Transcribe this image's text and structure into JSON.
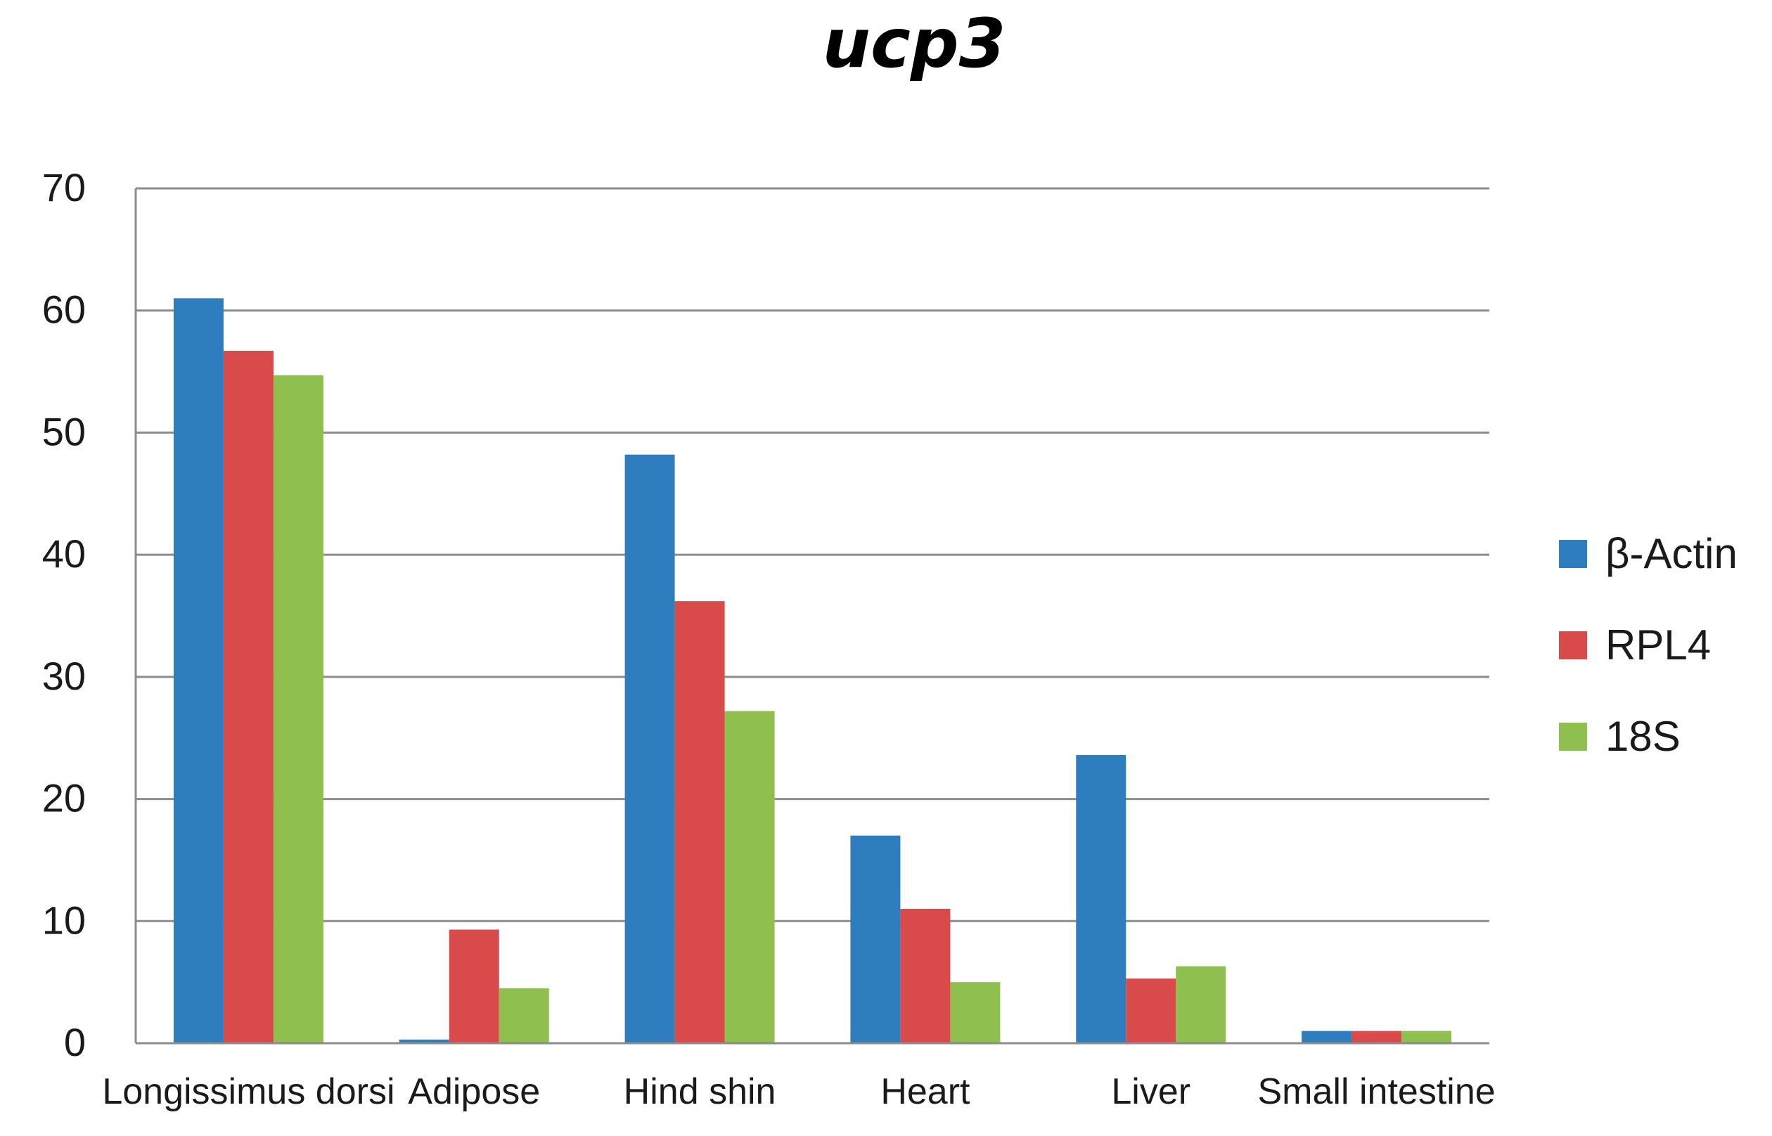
{
  "chart_data": {
    "type": "bar",
    "title": "ucp3",
    "xlabel": "",
    "ylabel": "",
    "ylim": [
      0,
      70
    ],
    "yticks": [
      0,
      10,
      20,
      30,
      40,
      50,
      60,
      70
    ],
    "grid": true,
    "legend_position": "right",
    "categories": [
      "Longissimus dorsi",
      "Adipose",
      "Hind shin",
      "Heart",
      "Liver",
      "Small intestine"
    ],
    "series": [
      {
        "name": "β-Actin",
        "color": "#2e7ebf",
        "values": [
          61,
          0.3,
          48.2,
          17,
          23.6,
          1
        ]
      },
      {
        "name": "RPL4",
        "color": "#d94a4a",
        "values": [
          56.7,
          9.3,
          36.2,
          11,
          5.3,
          1
        ]
      },
      {
        "name": "18S",
        "color": "#8fbf4f",
        "values": [
          54.7,
          4.5,
          27.2,
          5,
          6.3,
          1
        ]
      }
    ]
  }
}
